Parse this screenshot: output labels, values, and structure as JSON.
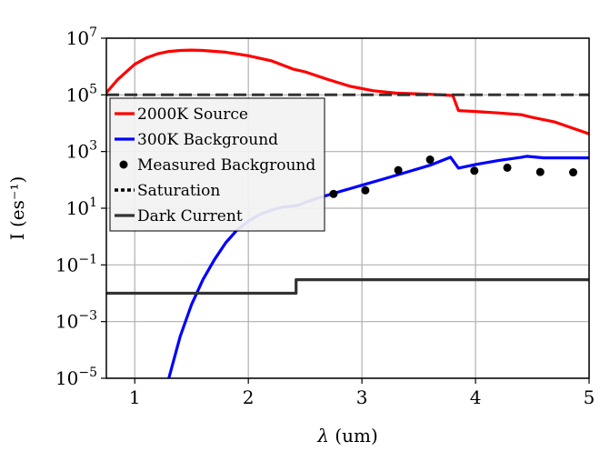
{
  "chart_data": {
    "type": "line",
    "xlabel": "λ (um)",
    "ylabel": "I (es⁻¹)",
    "xlim": [
      0.75,
      5.0
    ],
    "ylim": [
      1e-05,
      10000000.0
    ],
    "yscale": "log",
    "grid": true,
    "legend_placement": "upper-left",
    "x_ticks": [
      {
        "value": 1,
        "label": "1"
      },
      {
        "value": 2,
        "label": "2"
      },
      {
        "value": 3,
        "label": "3"
      },
      {
        "value": 4,
        "label": "4"
      },
      {
        "value": 5,
        "label": "5"
      }
    ],
    "y_ticks": [
      {
        "value": 1e-05,
        "base": "10",
        "exp": "−5"
      },
      {
        "value": 0.001,
        "base": "10",
        "exp": "−3"
      },
      {
        "value": 0.1,
        "base": "10",
        "exp": "−1"
      },
      {
        "value": 10.0,
        "base": "10",
        "exp": "1"
      },
      {
        "value": 1000.0,
        "base": "10",
        "exp": "3"
      },
      {
        "value": 100000.0,
        "base": "10",
        "exp": "5"
      },
      {
        "value": 10000000.0,
        "base": "10",
        "exp": "7"
      }
    ],
    "series": [
      {
        "name": "2000K Source",
        "kind": "line",
        "color": "#ff0000",
        "x": [
          0.75,
          0.85,
          1.0,
          1.1,
          1.2,
          1.3,
          1.4,
          1.5,
          1.6,
          1.8,
          2.0,
          2.2,
          2.4,
          2.5,
          2.7,
          2.9,
          3.1,
          3.3,
          3.6,
          3.8,
          3.85,
          4.0,
          4.2,
          4.4,
          4.5,
          4.7,
          5.0
        ],
        "y": [
          120000.0,
          350000.0,
          1200000.0,
          2000000.0,
          2800000.0,
          3400000.0,
          3700000.0,
          3800000.0,
          3700000.0,
          3200000.0,
          2400000.0,
          1600000.0,
          800000.0,
          650000.0,
          350000.0,
          200000.0,
          140000.0,
          115000.0,
          105000.0,
          95000.0,
          28000.0,
          26000.0,
          23000.0,
          20000.0,
          16000.0,
          11000.0,
          4200.0
        ]
      },
      {
        "name": "300K Background",
        "kind": "line",
        "color": "#0000ff",
        "x": [
          1.3,
          1.4,
          1.5,
          1.6,
          1.7,
          1.8,
          1.9,
          2.0,
          2.1,
          2.2,
          2.3,
          2.4,
          2.45,
          2.5,
          2.6,
          2.8,
          3.0,
          3.2,
          3.4,
          3.6,
          3.78,
          3.85,
          4.0,
          4.2,
          4.4,
          4.45,
          4.6,
          4.8,
          5.0
        ],
        "y": [
          1e-05,
          0.0003,
          0.004,
          0.03,
          0.15,
          0.6,
          1.7,
          3.5,
          6.0,
          8.5,
          11,
          12,
          13,
          16,
          22,
          38,
          65,
          110,
          190,
          330,
          630,
          260,
          350,
          480,
          620,
          680,
          600,
          600,
          600
        ]
      },
      {
        "name": "Measured Background",
        "kind": "scatter",
        "color": "#000000",
        "x": [
          2.75,
          3.03,
          3.32,
          3.6,
          3.99,
          4.28,
          4.57,
          4.86
        ],
        "y": [
          32,
          43,
          220,
          520,
          210,
          270,
          190,
          185
        ]
      },
      {
        "name": "Saturation",
        "kind": "dashed",
        "color": "#333333",
        "x": [
          0.75,
          5.0
        ],
        "y": [
          100000.0,
          100000.0
        ]
      },
      {
        "name": "Dark Current",
        "kind": "step",
        "color": "#333333",
        "x": [
          0.75,
          2.42,
          2.42,
          5.0
        ],
        "y": [
          0.01,
          0.01,
          0.03,
          0.03
        ]
      }
    ],
    "legend": [
      {
        "label": "2000K Source",
        "style": "line",
        "color": "#ff0000"
      },
      {
        "label": "300K Background",
        "style": "line",
        "color": "#0000ff"
      },
      {
        "label": "Measured Background",
        "style": "marker",
        "color": "#000000"
      },
      {
        "label": "Saturation",
        "style": "dotted",
        "color": "#000000"
      },
      {
        "label": "Dark Current",
        "style": "line",
        "color": "#333333"
      }
    ]
  }
}
